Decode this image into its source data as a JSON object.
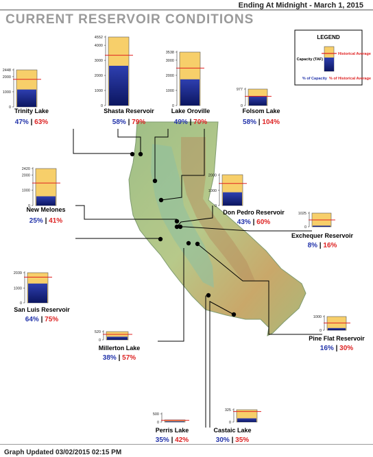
{
  "header": {
    "title": "CURRENT RESERVOIR CONDITIONS",
    "date_line": "Ending At Midnight - March 1, 2015"
  },
  "legend": {
    "title": "LEGEND",
    "capacity_label": "Capacity (TAF)",
    "historical_label": "Historical Average",
    "pct_capacity_label": "% of Capacity",
    "pct_hist_label": "% of Historical Average"
  },
  "footer": {
    "updated": "Graph Updated 03/02/2015 02:15 PM"
  },
  "colors": {
    "capacity_fill": "#f7cf6a",
    "storage_fill": "#1c2a8c",
    "historical_line": "#e02020",
    "pct_capacity_text": "#2233aa",
    "pct_hist_text": "#dd2222"
  },
  "chart_data": {
    "type": "bar",
    "units": "TAF",
    "reservoirs": [
      {
        "name": "Trinity Lake",
        "capacity": 2448,
        "storage": 1150,
        "historical": 1825,
        "pct_capacity": "47%",
        "pct_hist": "63%",
        "ticks": [
          "2448",
          "2000",
          "1000",
          "0"
        ]
      },
      {
        "name": "Shasta Reservoir",
        "capacity": 4552,
        "storage": 2640,
        "historical": 3340,
        "pct_capacity": "58%",
        "pct_hist": "79%",
        "ticks": [
          "4552",
          "4000",
          "3000",
          "2000",
          "1000",
          "0"
        ]
      },
      {
        "name": "Lake Oroville",
        "capacity": 3538,
        "storage": 1734,
        "historical": 2477,
        "pct_capacity": "49%",
        "pct_hist": "70%",
        "ticks": [
          "3538",
          "3000",
          "2000",
          "1000",
          "0"
        ]
      },
      {
        "name": "Folsom Lake",
        "capacity": 977,
        "storage": 567,
        "historical": 545,
        "pct_capacity": "58%",
        "pct_hist": "104%",
        "ticks": [
          "977",
          "0"
        ]
      },
      {
        "name": "New Melones",
        "capacity": 2420,
        "storage": 605,
        "historical": 1476,
        "pct_capacity": "25%",
        "pct_hist": "41%",
        "ticks": [
          "2420",
          "2000",
          "1000",
          "0"
        ]
      },
      {
        "name": "Don Pedro Reservoir",
        "capacity": 2030,
        "storage": 873,
        "historical": 1455,
        "pct_capacity": "43%",
        "pct_hist": "60%",
        "ticks": [
          "2000",
          "1000",
          "0"
        ]
      },
      {
        "name": "Exchequer Reservoir",
        "capacity": 1025,
        "storage": 82,
        "historical": 513,
        "pct_capacity": "8%",
        "pct_hist": "16%",
        "ticks": [
          "1025",
          "0"
        ]
      },
      {
        "name": "San Luis Reservoir",
        "capacity": 2039,
        "storage": 1305,
        "historical": 1740,
        "pct_capacity": "64%",
        "pct_hist": "75%",
        "ticks": [
          "2039",
          "1000",
          "0"
        ]
      },
      {
        "name": "Millerton Lake",
        "capacity": 520,
        "storage": 198,
        "historical": 347,
        "pct_capacity": "38%",
        "pct_hist": "57%",
        "ticks": [
          "520",
          "0"
        ]
      },
      {
        "name": "Pine Flat Reservoir",
        "capacity": 1000,
        "storage": 160,
        "historical": 533,
        "pct_capacity": "16%",
        "pct_hist": "30%",
        "ticks": [
          "1000",
          "0"
        ]
      },
      {
        "name": "Perris Lake",
        "capacity": 131,
        "storage": 46,
        "historical": 110,
        "pct_capacity": "35%",
        "pct_hist": "42%",
        "ticks": [
          "500",
          "0"
        ]
      },
      {
        "name": "Castaic Lake",
        "capacity": 325,
        "storage": 98,
        "historical": 278,
        "pct_capacity": "30%",
        "pct_hist": "35%",
        "ticks": [
          "325",
          "0"
        ]
      }
    ]
  }
}
